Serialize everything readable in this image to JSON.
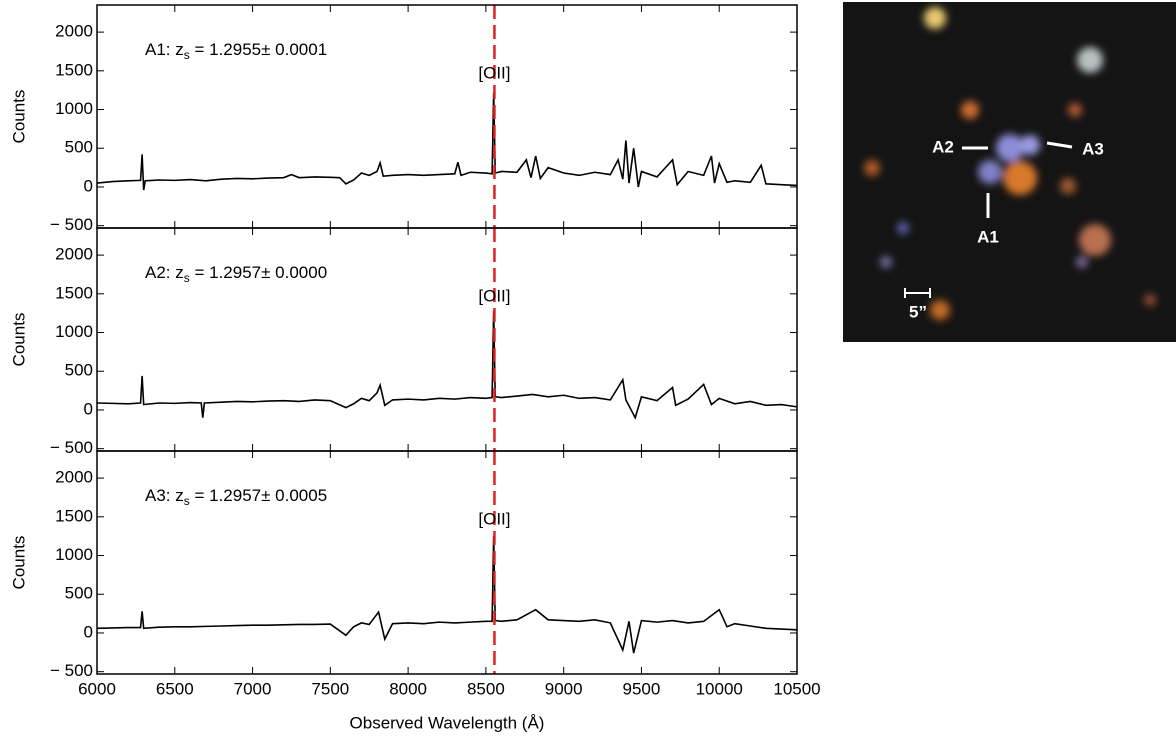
{
  "chart_data": [
    {
      "type": "line",
      "ylabel": "Counts",
      "annotation": {
        "text": "A1: z",
        "sub": "s",
        "rest": " = 1.2955± 0.0001"
      },
      "reference_line": {
        "x": 8555,
        "label": "[OII]",
        "color": "#e02020"
      },
      "xlim": [
        6000,
        10500
      ],
      "xticks": [
        6000,
        6500,
        7000,
        7500,
        8000,
        8500,
        9000,
        9500,
        10000,
        10500
      ],
      "ylim": [
        -530,
        2350
      ],
      "yticks": [
        {
          "value": -500,
          "label": "− 500"
        },
        0,
        500,
        1000,
        1500,
        2000
      ],
      "color": "#000000",
      "x": [
        6000,
        6100,
        6200,
        6280,
        6290,
        6300,
        6310,
        6400,
        6500,
        6600,
        6700,
        6800,
        6900,
        7000,
        7100,
        7200,
        7250,
        7300,
        7400,
        7500,
        7560,
        7600,
        7650,
        7700,
        7750,
        7800,
        7820,
        7840,
        7900,
        8000,
        8100,
        8200,
        8300,
        8320,
        8340,
        8400,
        8500,
        8540,
        8550,
        8560,
        8600,
        8700,
        8760,
        8790,
        8820,
        8850,
        8900,
        9000,
        9100,
        9200,
        9300,
        9350,
        9380,
        9400,
        9420,
        9450,
        9480,
        9500,
        9600,
        9700,
        9730,
        9800,
        9900,
        9950,
        9970,
        10000,
        10050,
        10100,
        10200,
        10270,
        10300,
        10400,
        10500
      ],
      "values": [
        50,
        70,
        80,
        85,
        420,
        -40,
        80,
        90,
        85,
        95,
        80,
        100,
        110,
        105,
        115,
        120,
        160,
        120,
        130,
        125,
        120,
        40,
        90,
        180,
        150,
        200,
        310,
        140,
        150,
        160,
        150,
        160,
        170,
        320,
        150,
        190,
        180,
        170,
        1220,
        180,
        200,
        190,
        350,
        120,
        400,
        110,
        250,
        180,
        150,
        190,
        160,
        350,
        100,
        600,
        50,
        500,
        0,
        200,
        130,
        350,
        30,
        200,
        150,
        400,
        50,
        300,
        60,
        80,
        60,
        280,
        40,
        30,
        20
      ]
    },
    {
      "type": "line",
      "ylabel": "Counts",
      "annotation": {
        "text": "A2: z",
        "sub": "s",
        "rest": " = 1.2957± 0.0000"
      },
      "reference_line": {
        "x": 8555,
        "label": "[OII]",
        "color": "#e02020"
      },
      "xlim": [
        6000,
        10500
      ],
      "xticks": [
        6000,
        6500,
        7000,
        7500,
        8000,
        8500,
        9000,
        9500,
        10000,
        10500
      ],
      "ylim": [
        -530,
        2350
      ],
      "yticks": [
        {
          "value": -500,
          "label": "− 500"
        },
        0,
        500,
        1000,
        1500,
        2000
      ],
      "color": "#000000",
      "x": [
        6000,
        6100,
        6200,
        6280,
        6290,
        6300,
        6400,
        6500,
        6600,
        6670,
        6680,
        6690,
        6800,
        6900,
        7000,
        7100,
        7200,
        7300,
        7400,
        7500,
        7600,
        7650,
        7700,
        7750,
        7800,
        7820,
        7850,
        7900,
        8000,
        8100,
        8200,
        8300,
        8400,
        8500,
        8540,
        8550,
        8560,
        8600,
        8700,
        8800,
        8900,
        9000,
        9100,
        9200,
        9300,
        9380,
        9400,
        9460,
        9500,
        9600,
        9700,
        9720,
        9800,
        9900,
        9950,
        10000,
        10100,
        10200,
        10300,
        10400,
        10500
      ],
      "values": [
        90,
        85,
        80,
        90,
        440,
        70,
        90,
        85,
        95,
        90,
        -100,
        90,
        100,
        110,
        105,
        115,
        120,
        110,
        130,
        120,
        30,
        80,
        150,
        120,
        220,
        320,
        60,
        130,
        140,
        130,
        150,
        140,
        160,
        150,
        160,
        1280,
        170,
        160,
        180,
        200,
        170,
        190,
        150,
        160,
        130,
        390,
        130,
        -100,
        170,
        120,
        290,
        60,
        140,
        330,
        70,
        150,
        80,
        110,
        60,
        70,
        40
      ]
    },
    {
      "type": "line",
      "ylabel": "Counts",
      "xlabel": "Observed Wavelength (Å)",
      "annotation": {
        "text": "A3: z",
        "sub": "s",
        "rest": " = 1.2957± 0.0005"
      },
      "reference_line": {
        "x": 8555,
        "label": "[OII]",
        "color": "#e02020"
      },
      "xlim": [
        6000,
        10500
      ],
      "xticks": [
        6000,
        6500,
        7000,
        7500,
        8000,
        8500,
        9000,
        9500,
        10000,
        10500
      ],
      "ylim": [
        -530,
        2350
      ],
      "yticks": [
        {
          "value": -500,
          "label": "− 500"
        },
        0,
        500,
        1000,
        1500,
        2000
      ],
      "color": "#000000",
      "x": [
        6000,
        6100,
        6200,
        6280,
        6290,
        6300,
        6400,
        6500,
        6600,
        6700,
        6800,
        6900,
        7000,
        7100,
        7200,
        7300,
        7400,
        7500,
        7600,
        7650,
        7700,
        7750,
        7810,
        7850,
        7900,
        8000,
        8100,
        8200,
        8300,
        8400,
        8500,
        8540,
        8550,
        8560,
        8600,
        8700,
        8820,
        8900,
        9000,
        9100,
        9200,
        9300,
        9380,
        9420,
        9450,
        9500,
        9600,
        9700,
        9800,
        9900,
        10000,
        10050,
        10100,
        10200,
        10300,
        10400,
        10500
      ],
      "values": [
        60,
        65,
        70,
        70,
        280,
        60,
        75,
        80,
        80,
        85,
        90,
        95,
        100,
        100,
        105,
        110,
        110,
        115,
        -30,
        80,
        130,
        110,
        270,
        -80,
        120,
        130,
        120,
        140,
        130,
        140,
        150,
        150,
        1250,
        160,
        150,
        170,
        300,
        170,
        160,
        150,
        170,
        130,
        -220,
        150,
        -260,
        160,
        140,
        160,
        130,
        150,
        300,
        80,
        120,
        90,
        60,
        50,
        40
      ]
    }
  ],
  "image": {
    "labels": [
      "A1",
      "A2",
      "A3",
      "5”"
    ]
  }
}
